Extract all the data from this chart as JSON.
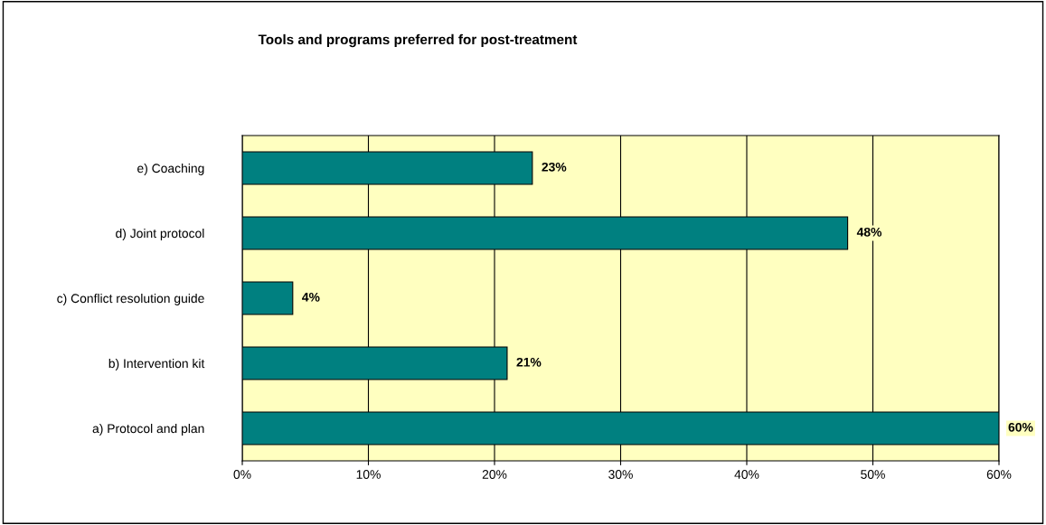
{
  "chart_data": {
    "type": "bar",
    "orientation": "horizontal",
    "title": "Tools and programs preferred for post-treatment",
    "categories": [
      "e) Coaching",
      "d) Joint protocol",
      "c) Conflict resolution guide",
      "b) Intervention kit",
      "a) Protocol and plan"
    ],
    "values": [
      23,
      48,
      4,
      21,
      60
    ],
    "color": "#008080",
    "value_labels": [
      "23%",
      "48%",
      "4%",
      "21%",
      "60%"
    ],
    "xlim": [
      0,
      60
    ],
    "xticks": [
      {
        "value": 0,
        "label": "0%"
      },
      {
        "value": 10,
        "label": "10%"
      },
      {
        "value": 20,
        "label": "20%"
      },
      {
        "value": 30,
        "label": "30%"
      },
      {
        "value": 40,
        "label": "40%"
      },
      {
        "value": 50,
        "label": "50%"
      },
      {
        "value": 60,
        "label": "60%"
      }
    ],
    "grid": "x",
    "legend": false
  }
}
